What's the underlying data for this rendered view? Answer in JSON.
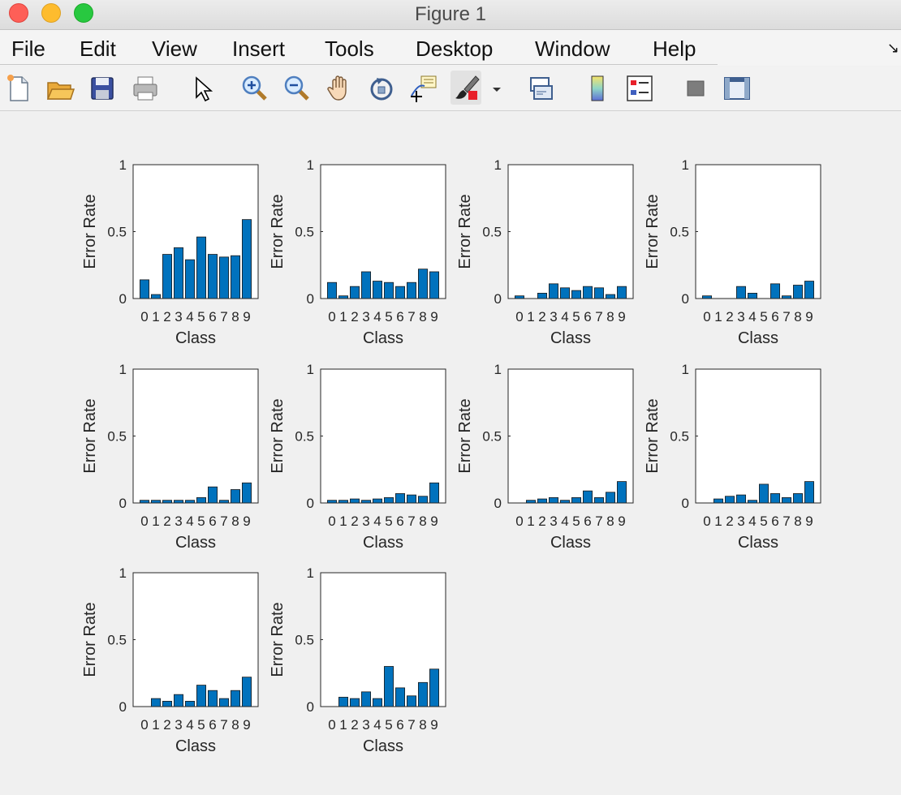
{
  "window": {
    "title": "Figure 1"
  },
  "menu": {
    "items": [
      "File",
      "Edit",
      "View",
      "Insert",
      "Tools",
      "Desktop",
      "Window",
      "Help"
    ],
    "overflow_icon": "corner-arrow-icon"
  },
  "toolbar": {
    "icons": [
      "new-figure-icon",
      "open-file-icon",
      "save-icon",
      "print-icon",
      "pointer-icon",
      "zoom-in-icon",
      "zoom-out-icon",
      "pan-hand-icon",
      "rotate-3d-icon",
      "data-cursor-icon",
      "brush-icon",
      "brush-dropdown-icon",
      "link-plot-icon",
      "colorbar-icon",
      "legend-icon",
      "hide-plot-tools-icon",
      "show-plot-tools-icon"
    ]
  },
  "colors": {
    "bar": "#0072BD",
    "axes_bg": "#ffffff",
    "figure_bg": "#f0f0f0"
  },
  "chart_data": [
    {
      "type": "bar",
      "categories": [
        "0",
        "1",
        "2",
        "3",
        "4",
        "5",
        "6",
        "7",
        "8",
        "9"
      ],
      "values": [
        0.14,
        0.03,
        0.33,
        0.38,
        0.29,
        0.46,
        0.33,
        0.31,
        0.32,
        0.59
      ],
      "xlabel": "Class",
      "ylabel": "Error Rate",
      "ylim": [
        0,
        1
      ],
      "yticks": [
        "0",
        "0.5",
        "1"
      ]
    },
    {
      "type": "bar",
      "categories": [
        "0",
        "1",
        "2",
        "3",
        "4",
        "5",
        "6",
        "7",
        "8",
        "9"
      ],
      "values": [
        0.12,
        0.02,
        0.09,
        0.2,
        0.13,
        0.12,
        0.09,
        0.12,
        0.22,
        0.2
      ],
      "xlabel": "Class",
      "ylabel": "Error Rate",
      "ylim": [
        0,
        1
      ],
      "yticks": [
        "0",
        "0.5",
        "1"
      ]
    },
    {
      "type": "bar",
      "categories": [
        "0",
        "1",
        "2",
        "3",
        "4",
        "5",
        "6",
        "7",
        "8",
        "9"
      ],
      "values": [
        0.02,
        0.0,
        0.04,
        0.11,
        0.08,
        0.06,
        0.09,
        0.08,
        0.03,
        0.09
      ],
      "xlabel": "Class",
      "ylabel": "Error Rate",
      "ylim": [
        0,
        1
      ],
      "yticks": [
        "0",
        "0.5",
        "1"
      ]
    },
    {
      "type": "bar",
      "categories": [
        "0",
        "1",
        "2",
        "3",
        "4",
        "5",
        "6",
        "7",
        "8",
        "9"
      ],
      "values": [
        0.02,
        0.0,
        0.0,
        0.09,
        0.04,
        0.0,
        0.11,
        0.02,
        0.1,
        0.13
      ],
      "xlabel": "Class",
      "ylabel": "Error Rate",
      "ylim": [
        0,
        1
      ],
      "yticks": [
        "0",
        "0.5",
        "1"
      ]
    },
    {
      "type": "bar",
      "categories": [
        "0",
        "1",
        "2",
        "3",
        "4",
        "5",
        "6",
        "7",
        "8",
        "9"
      ],
      "values": [
        0.02,
        0.02,
        0.02,
        0.02,
        0.02,
        0.04,
        0.12,
        0.02,
        0.1,
        0.15
      ],
      "xlabel": "Class",
      "ylabel": "Error Rate",
      "ylim": [
        0,
        1
      ],
      "yticks": [
        "0",
        "0.5",
        "1"
      ]
    },
    {
      "type": "bar",
      "categories": [
        "0",
        "1",
        "2",
        "3",
        "4",
        "5",
        "6",
        "7",
        "8",
        "9"
      ],
      "values": [
        0.02,
        0.02,
        0.03,
        0.02,
        0.03,
        0.04,
        0.07,
        0.06,
        0.05,
        0.15
      ],
      "xlabel": "Class",
      "ylabel": "Error Rate",
      "ylim": [
        0,
        1
      ],
      "yticks": [
        "0",
        "0.5",
        "1"
      ]
    },
    {
      "type": "bar",
      "categories": [
        "0",
        "1",
        "2",
        "3",
        "4",
        "5",
        "6",
        "7",
        "8",
        "9"
      ],
      "values": [
        0.0,
        0.02,
        0.03,
        0.04,
        0.02,
        0.04,
        0.09,
        0.04,
        0.08,
        0.16
      ],
      "xlabel": "Class",
      "ylabel": "Error Rate",
      "ylim": [
        0,
        1
      ],
      "yticks": [
        "0",
        "0.5",
        "1"
      ]
    },
    {
      "type": "bar",
      "categories": [
        "0",
        "1",
        "2",
        "3",
        "4",
        "5",
        "6",
        "7",
        "8",
        "9"
      ],
      "values": [
        0.0,
        0.03,
        0.05,
        0.06,
        0.02,
        0.14,
        0.07,
        0.04,
        0.07,
        0.16
      ],
      "xlabel": "Class",
      "ylabel": "Error Rate",
      "ylim": [
        0,
        1
      ],
      "yticks": [
        "0",
        "0.5",
        "1"
      ]
    },
    {
      "type": "bar",
      "categories": [
        "0",
        "1",
        "2",
        "3",
        "4",
        "5",
        "6",
        "7",
        "8",
        "9"
      ],
      "values": [
        0.0,
        0.06,
        0.04,
        0.09,
        0.04,
        0.16,
        0.12,
        0.06,
        0.12,
        0.22
      ],
      "xlabel": "Class",
      "ylabel": "Error Rate",
      "ylim": [
        0,
        1
      ],
      "yticks": [
        "0",
        "0.5",
        "1"
      ]
    },
    {
      "type": "bar",
      "categories": [
        "0",
        "1",
        "2",
        "3",
        "4",
        "5",
        "6",
        "7",
        "8",
        "9"
      ],
      "values": [
        0.0,
        0.07,
        0.06,
        0.11,
        0.06,
        0.3,
        0.14,
        0.08,
        0.18,
        0.28
      ],
      "xlabel": "Class",
      "ylabel": "Error Rate",
      "ylim": [
        0,
        1
      ],
      "yticks": [
        "0",
        "0.5",
        "1"
      ]
    }
  ]
}
